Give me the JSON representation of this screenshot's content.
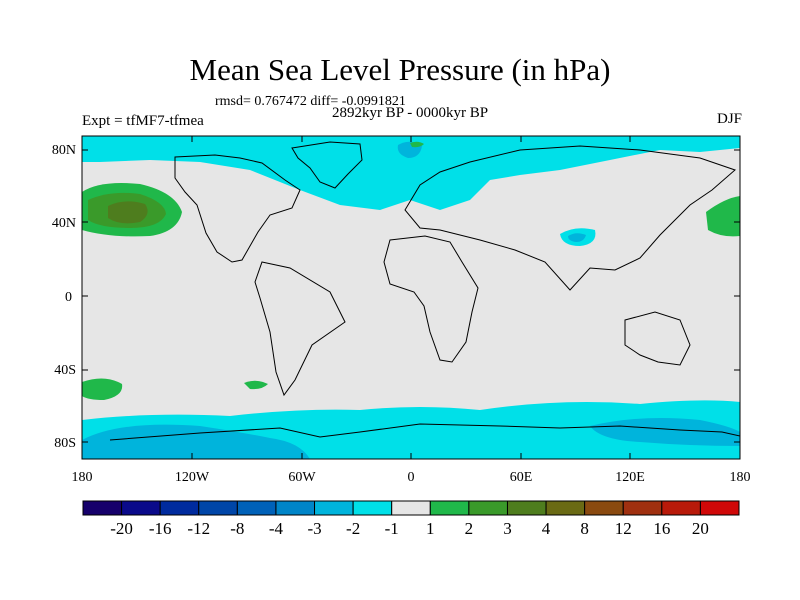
{
  "title": "Mean Sea Level Pressure (in hPa)",
  "stats": "rmsd= 0.767472 diff= -0.0991821",
  "period": "2892kyr BP - 0000kyr BP",
  "experiment": "Expt = tfMF7-tfmea",
  "season": "DJF",
  "axes": {
    "lat_ticks": [
      "80N",
      "40N",
      "0",
      "40S",
      "80S"
    ],
    "lon_ticks": [
      "180",
      "120W",
      "60W",
      "0",
      "60E",
      "120E",
      "180"
    ]
  },
  "colorbar": {
    "labels": [
      "-20",
      "-16",
      "-12",
      "-8",
      "-4",
      "-3",
      "-2",
      "-1",
      "1",
      "2",
      "3",
      "4",
      "8",
      "12",
      "16",
      "20"
    ],
    "colors": [
      "#16006b",
      "#0a0a8a",
      "#002b9e",
      "#0046a8",
      "#0061b8",
      "#0085c8",
      "#00b4dc",
      "#00e0e8",
      "#e6e6e6",
      "#20b84a",
      "#3a9a2a",
      "#4e7d1e",
      "#6a6a14",
      "#8a4a10",
      "#a03010",
      "#b81a0a",
      "#d00808"
    ]
  },
  "colors": {
    "background": "#e6e6e6",
    "neg_light": "#00e0e8",
    "neg_mid": "#00b4dc",
    "pos_light": "#20b84a",
    "pos_mid": "#3a9a2a",
    "pos_dark": "#4e7d1e"
  }
}
